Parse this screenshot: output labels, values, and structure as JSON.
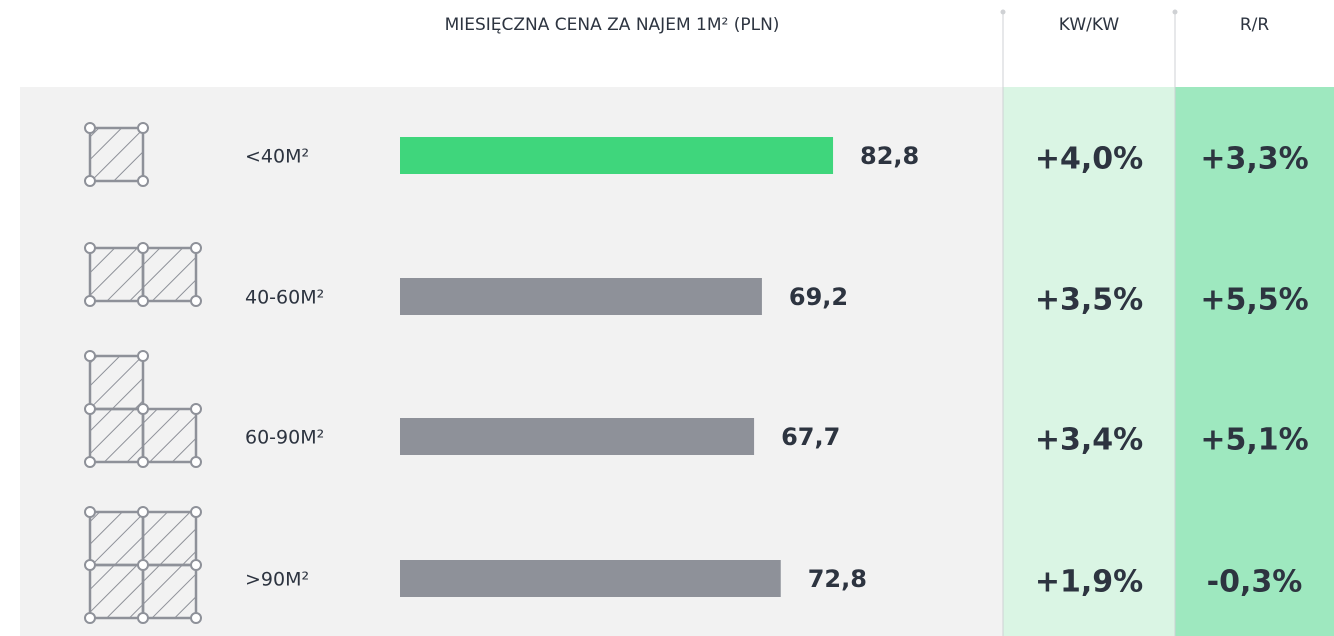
{
  "chart_data": {
    "type": "bar",
    "title": "MIESIĘCZNA CENA ZA NAJEM 1M² (PLN)",
    "categories": [
      "<40M²",
      "40-60M²",
      "60-90M²",
      ">90M²"
    ],
    "values": [
      82.8,
      69.2,
      67.7,
      72.8
    ],
    "value_labels": [
      "82,8",
      "69,2",
      "67,7",
      "72,8"
    ],
    "colors": [
      "#3fd67c",
      "#8e9199",
      "#8e9199",
      "#8e9199"
    ],
    "columns": [
      {
        "name": "KW/KW",
        "color": "#daf5e4",
        "values": [
          4.0,
          3.5,
          3.4,
          1.9
        ],
        "value_labels": [
          "+4,0%",
          "+3,5%",
          "+3,4%",
          "+1,9%"
        ]
      },
      {
        "name": "R/R",
        "color": "#9ee8bf",
        "values": [
          3.3,
          5.5,
          5.1,
          -0.3
        ],
        "value_labels": [
          "+3,3%",
          "+5,5%",
          "+5,1%",
          "-0,3%"
        ]
      }
    ]
  }
}
